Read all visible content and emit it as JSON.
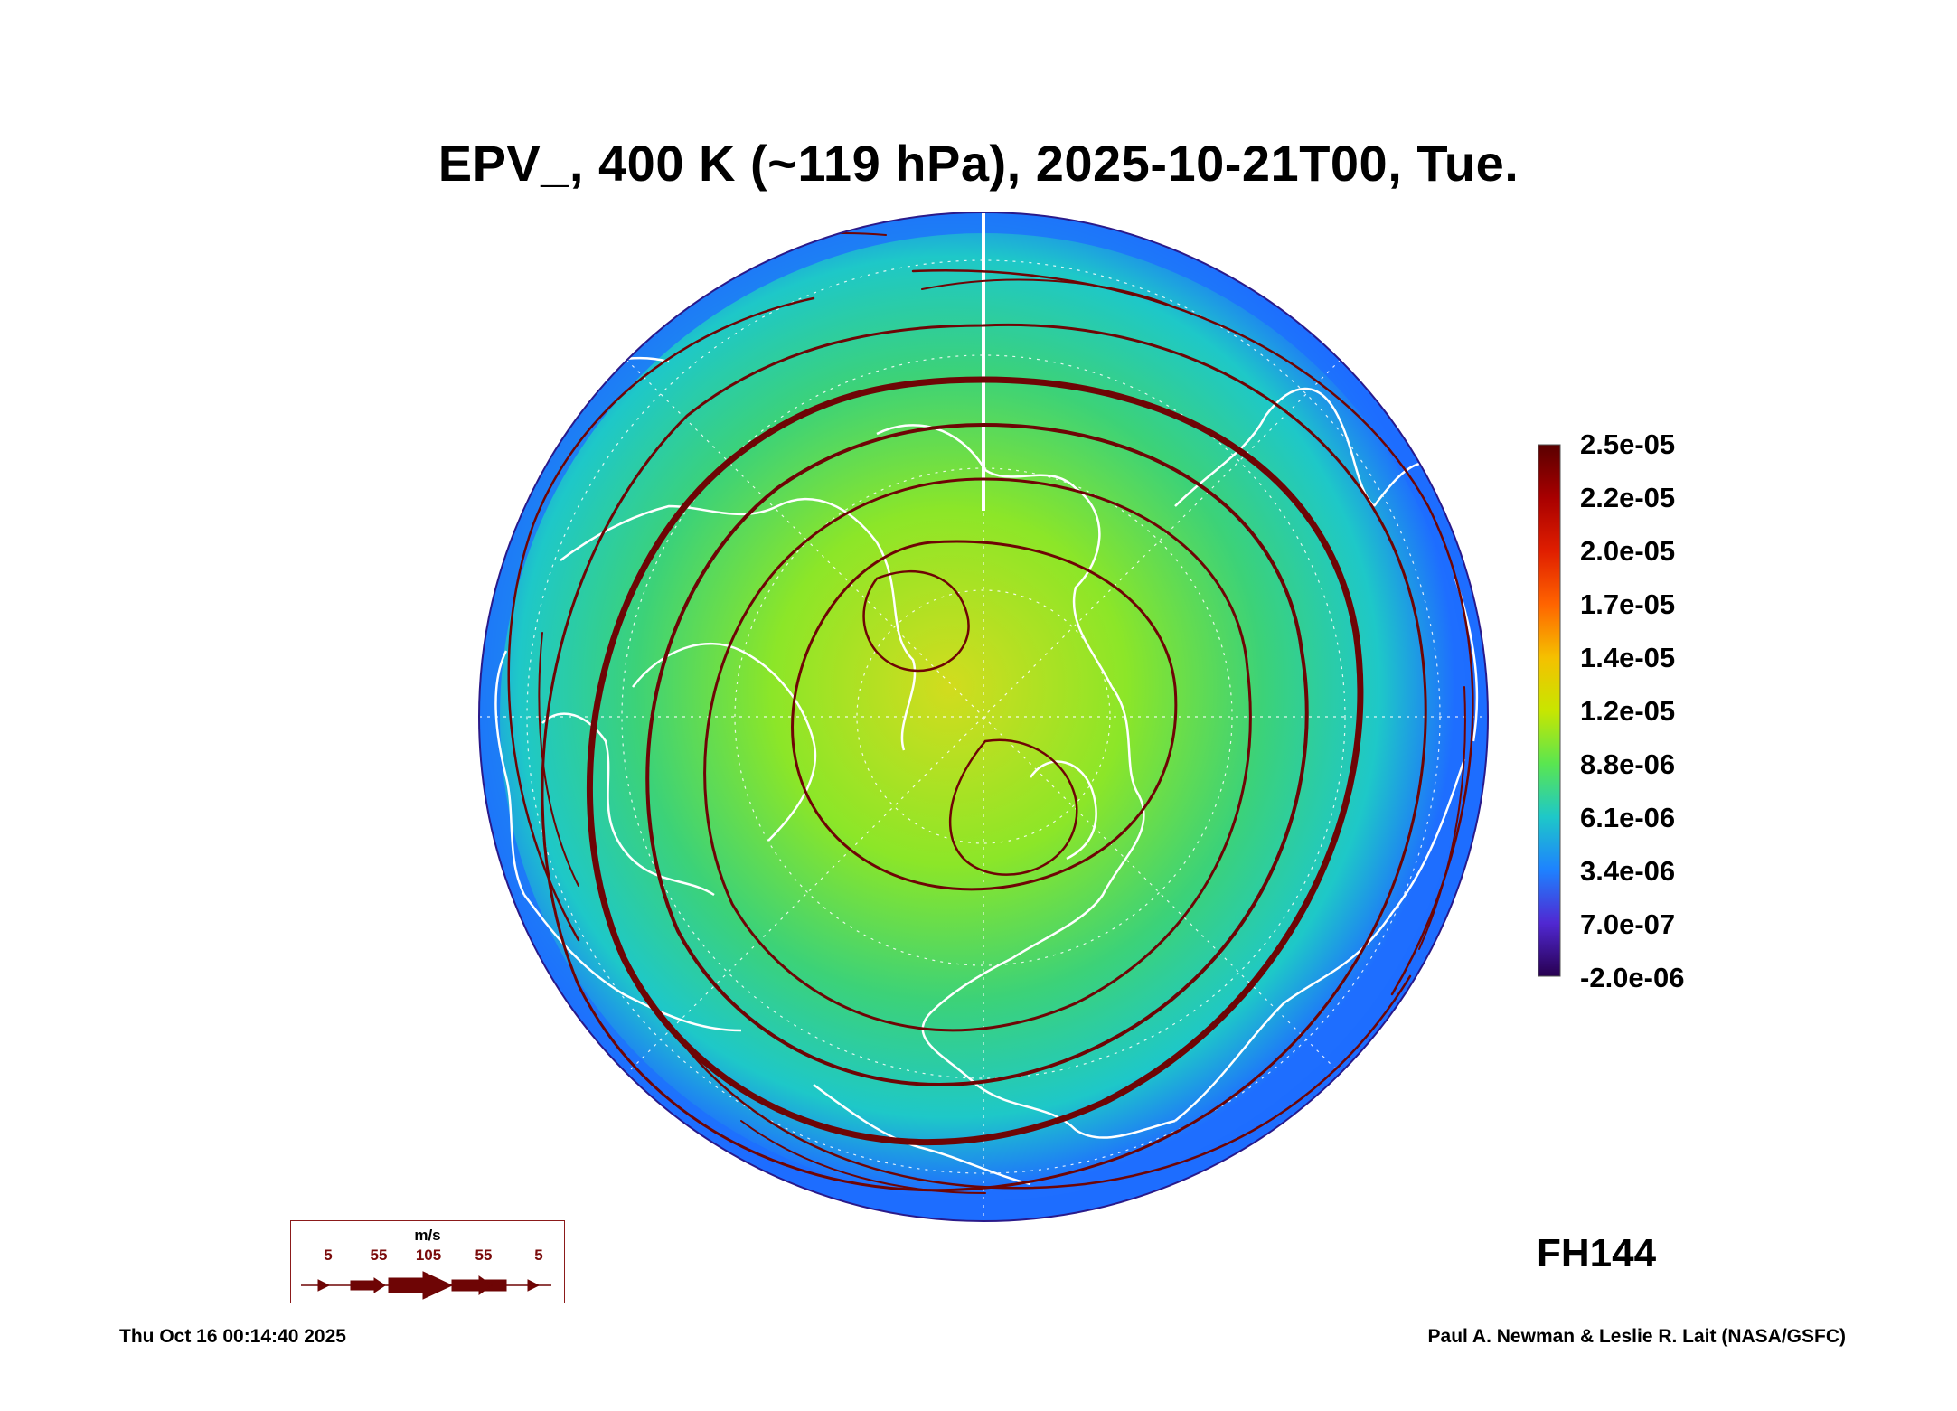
{
  "title": "EPV_, 400 K (~119 hPa), 2025-10-21T00, Tue.",
  "forecast_hour": "FH144",
  "timestamp": "Thu Oct 16 00:14:40 2025",
  "credit": "Paul A. Newman & Leslie R. Lait (NASA/GSFC)",
  "projection": "north polar orthographic",
  "field": "EPV_",
  "colorbar": {
    "labels": [
      "2.5e-05",
      "2.2e-05",
      "2.0e-05",
      "1.7e-05",
      "1.4e-05",
      "1.2e-05",
      "8.8e-06",
      "6.1e-06",
      "3.4e-06",
      "7.0e-07",
      "-2.0e-06"
    ],
    "colors": [
      "#5a0000",
      "#a80000",
      "#e01e00",
      "#ff6400",
      "#f5c000",
      "#c8e600",
      "#5ae650",
      "#1ec8c8",
      "#1e82ff",
      "#5028d2",
      "#280050"
    ]
  },
  "map_colors": {
    "vortex_core": "#d2dc1e",
    "inner": "#8ce628",
    "mid": "#3cd278",
    "outer": "#1ec8c8",
    "edge": "#1e6eff",
    "coastline": "#ffffff",
    "streamline": "#6e0505"
  },
  "wind_legend": {
    "unit": "m/s",
    "speeds": [
      "5",
      "55",
      "105",
      "55",
      "5"
    ]
  }
}
